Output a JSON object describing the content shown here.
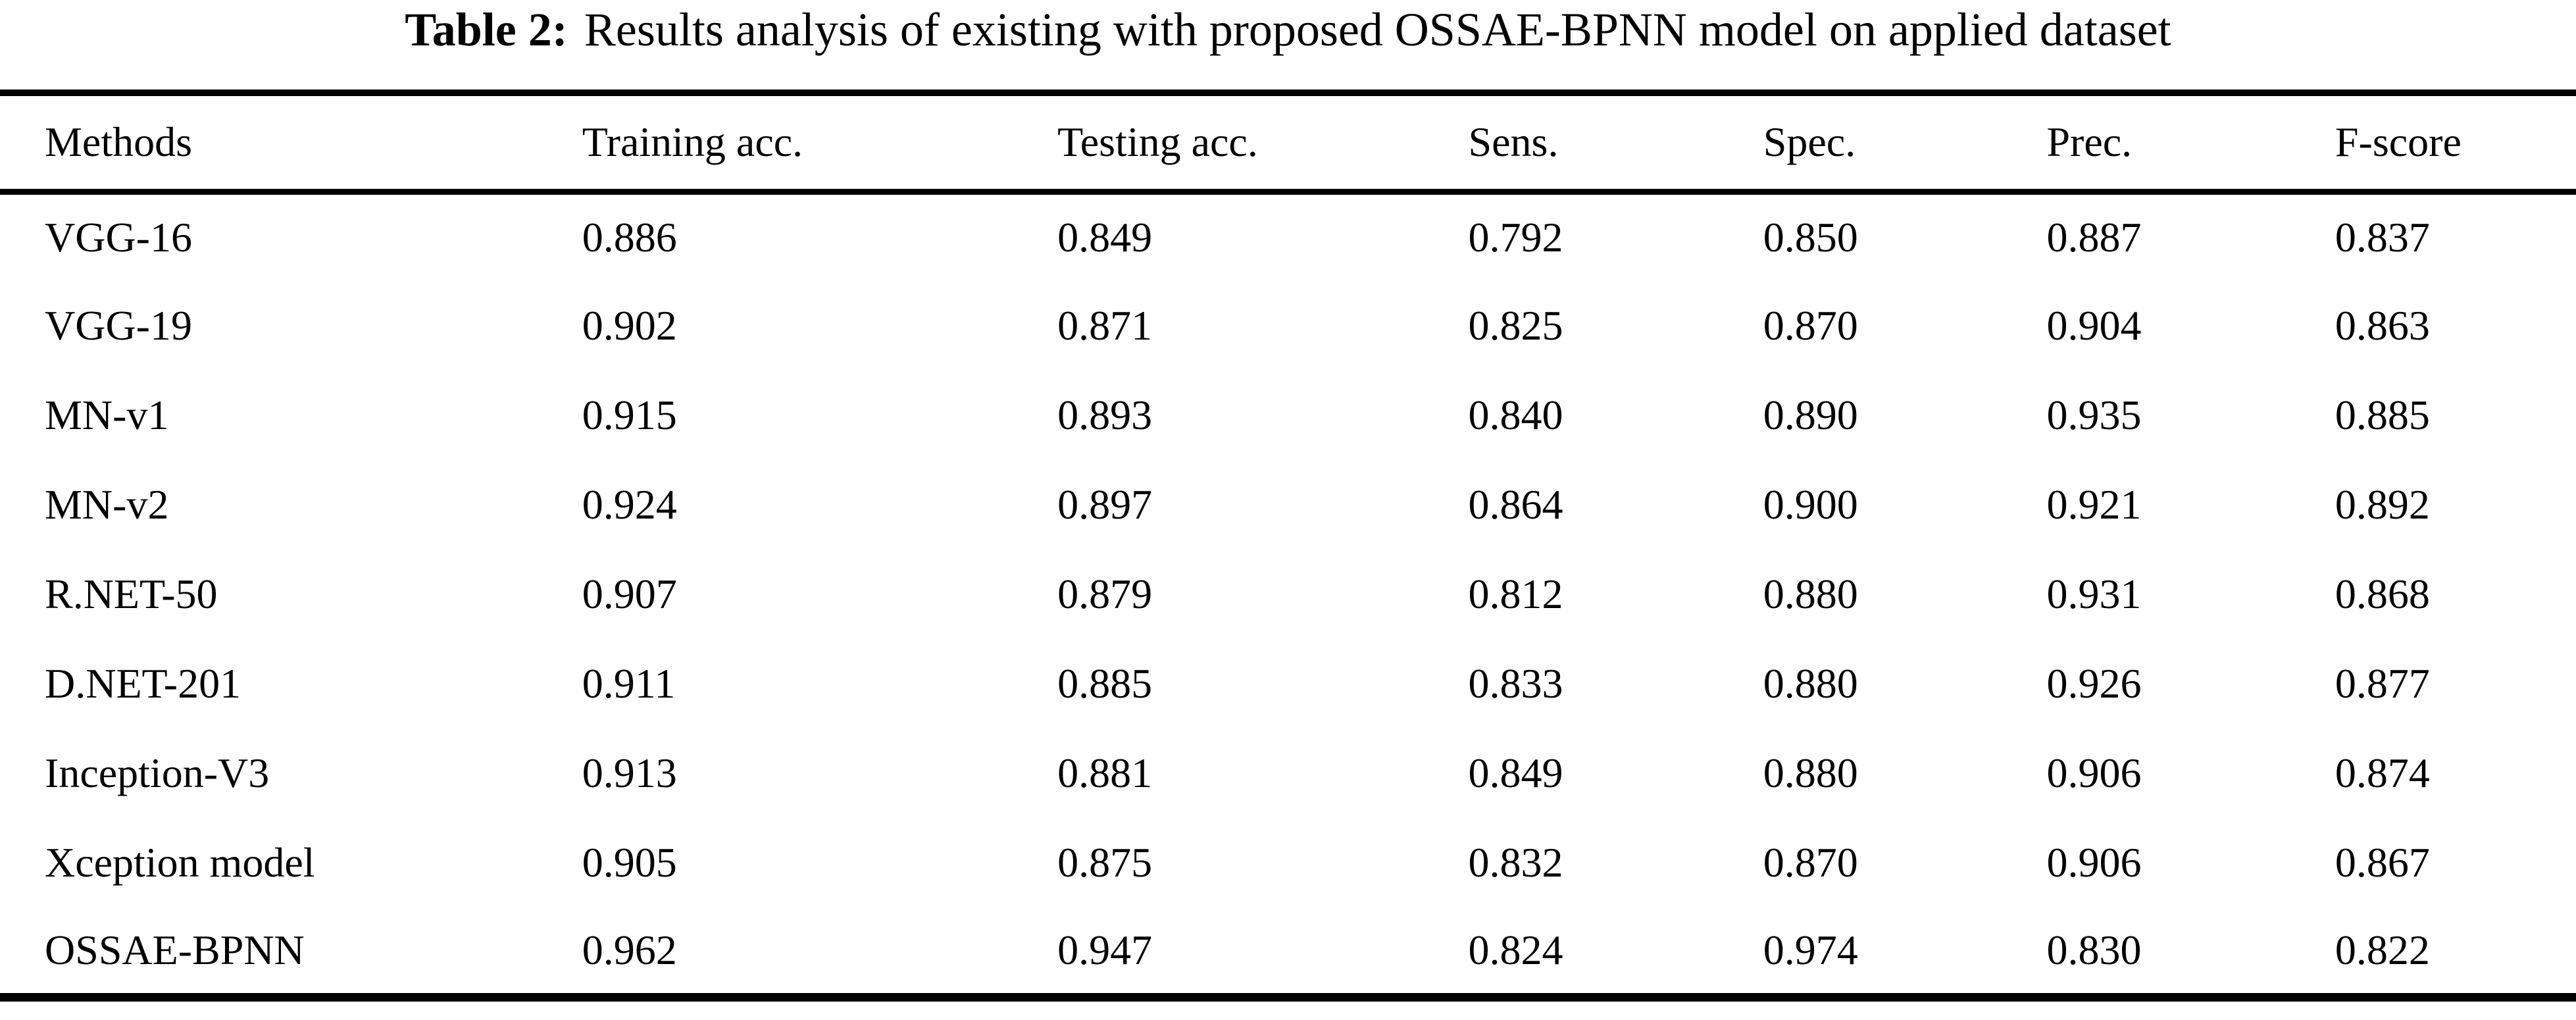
{
  "title": {
    "label": "Table 2:",
    "caption": "Results analysis of existing with proposed OSSAE-BPNN model on applied dataset"
  },
  "table": {
    "columns": [
      "Methods",
      "Training acc.",
      "Testing acc.",
      "Sens.",
      "Spec.",
      "Prec.",
      "F-score"
    ],
    "rows": [
      {
        "method": "VGG-16",
        "values": [
          "0.886",
          "0.849",
          "0.792",
          "0.850",
          "0.887",
          "0.837"
        ]
      },
      {
        "method": "VGG-19",
        "values": [
          "0.902",
          "0.871",
          "0.825",
          "0.870",
          "0.904",
          "0.863"
        ]
      },
      {
        "method": "MN-v1",
        "values": [
          "0.915",
          "0.893",
          "0.840",
          "0.890",
          "0.935",
          "0.885"
        ]
      },
      {
        "method": "MN-v2",
        "values": [
          "0.924",
          "0.897",
          "0.864",
          "0.900",
          "0.921",
          "0.892"
        ]
      },
      {
        "method": "R.NET-50",
        "values": [
          "0.907",
          "0.879",
          "0.812",
          "0.880",
          "0.931",
          "0.868"
        ]
      },
      {
        "method": "D.NET-201",
        "values": [
          "0.911",
          "0.885",
          "0.833",
          "0.880",
          "0.926",
          "0.877"
        ]
      },
      {
        "method": "Inception-V3",
        "values": [
          "0.913",
          "0.881",
          "0.849",
          "0.880",
          "0.906",
          "0.874"
        ]
      },
      {
        "method": "Xception model",
        "values": [
          "0.905",
          "0.875",
          "0.832",
          "0.870",
          "0.906",
          "0.867"
        ]
      },
      {
        "method": "OSSAE-BPNN",
        "values": [
          "0.962",
          "0.947",
          "0.824",
          "0.974",
          "0.830",
          "0.822"
        ]
      }
    ]
  },
  "colors": {
    "text": "#000000",
    "background": "#ffffff",
    "rule": "#000000"
  }
}
